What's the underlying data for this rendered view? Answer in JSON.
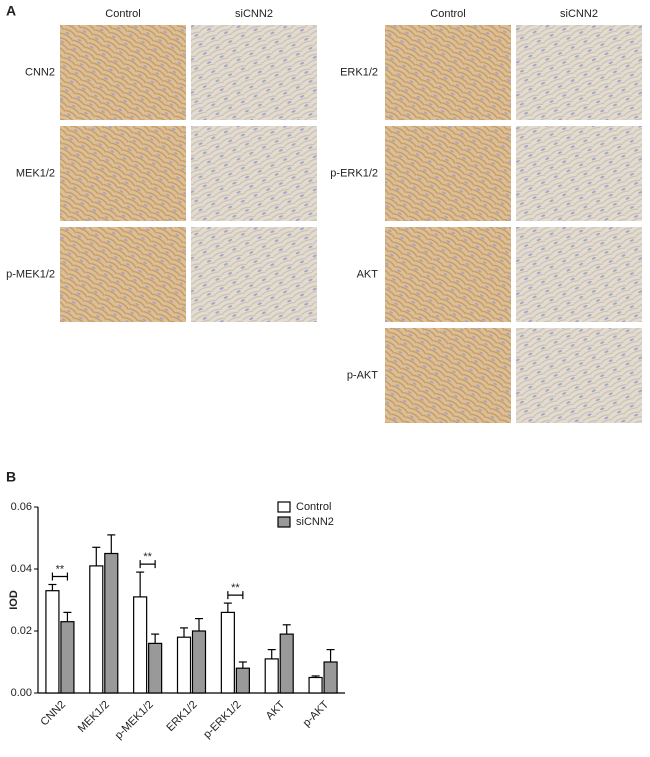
{
  "panel_a": {
    "label": "A",
    "left": {
      "columns": [
        "Control",
        "siCNN2"
      ],
      "rows": [
        "CNN2",
        "MEK1/2",
        "p-MEK1/2"
      ]
    },
    "right": {
      "columns": [
        "Control",
        "siCNN2"
      ],
      "rows": [
        "ERK1/2",
        "p-ERK1/2",
        "AKT",
        "p-AKT"
      ]
    }
  },
  "chart_data": {
    "type": "bar",
    "panel_label": "B",
    "ylabel": "IOD",
    "categories": [
      "CNN2",
      "MEK1/2",
      "p-MEK1/2",
      "ERK1/2",
      "p-ERK1/2",
      "AKT",
      "p-AKT"
    ],
    "series": [
      {
        "name": "Control",
        "color": "#ffffff",
        "values": [
          0.033,
          0.041,
          0.031,
          0.018,
          0.026,
          0.011,
          0.005
        ],
        "errors": [
          0.002,
          0.006,
          0.008,
          0.003,
          0.003,
          0.003,
          0.0005
        ]
      },
      {
        "name": "siCNN2",
        "color": "#999999",
        "values": [
          0.023,
          0.045,
          0.016,
          0.02,
          0.008,
          0.019,
          0.01
        ],
        "errors": [
          0.003,
          0.006,
          0.003,
          0.004,
          0.002,
          0.003,
          0.004
        ]
      }
    ],
    "significance": [
      "**",
      null,
      "**",
      null,
      "**",
      null,
      null
    ],
    "ylim": [
      0,
      0.06
    ],
    "yticks": [
      {
        "value": 0,
        "label": "0.00"
      },
      0.02,
      0.04,
      0.06
    ],
    "legend": "upper right"
  }
}
